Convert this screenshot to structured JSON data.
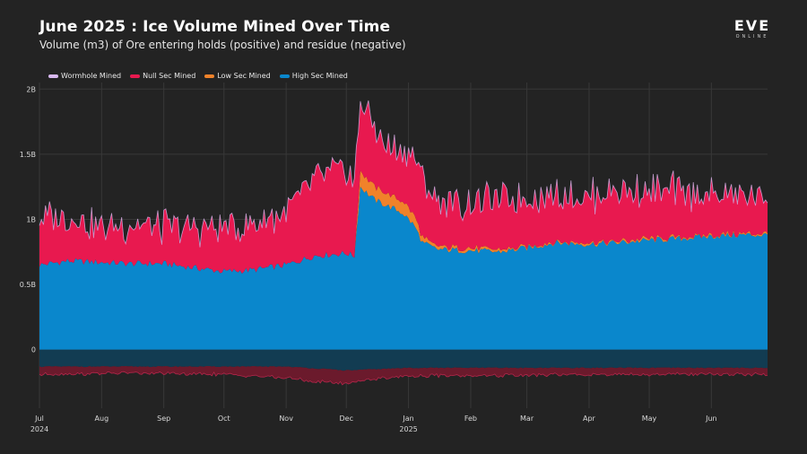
{
  "header": {
    "title": "June 2025 : Ice Volume Mined Over Time",
    "subtitle": "Volume (m3) of Ore entering holds (positive) and residue (negative)"
  },
  "logo": {
    "main": "EVE",
    "sub": "ONLINE"
  },
  "colors": {
    "background": "#232323",
    "wormhole": "#d8b8f0",
    "nullsec": "#e8194f",
    "lowsec": "#f0822a",
    "highsec": "#0a87cc",
    "residue_highsec": "#123c52",
    "residue_nullsec": "#6b1a2c",
    "grid": "#383838"
  },
  "chart_data": {
    "type": "area",
    "stacked": true,
    "x_range": [
      "2024-07-01",
      "2025-06-29"
    ],
    "yticks": [
      {
        "value": 0,
        "label": "0"
      },
      {
        "value": 0.5,
        "label": "0.5B"
      },
      {
        "value": 1,
        "label": "1B"
      },
      {
        "value": 1.5,
        "label": "1.5B"
      },
      {
        "value": 2,
        "label": "2B"
      }
    ],
    "ylim": [
      -0.45,
      2.05
    ],
    "xticks": [
      {
        "date": "2024-07-01",
        "label": "Jul",
        "sub": "2024"
      },
      {
        "date": "2024-08-01",
        "label": "Aug",
        "sub": ""
      },
      {
        "date": "2024-09-01",
        "label": "Sep",
        "sub": ""
      },
      {
        "date": "2024-10-01",
        "label": "Oct",
        "sub": ""
      },
      {
        "date": "2024-11-01",
        "label": "Nov",
        "sub": ""
      },
      {
        "date": "2024-12-01",
        "label": "Dec",
        "sub": ""
      },
      {
        "date": "2025-01-01",
        "label": "Jan",
        "sub": "2025"
      },
      {
        "date": "2025-02-01",
        "label": "Feb",
        "sub": ""
      },
      {
        "date": "2025-03-01",
        "label": "Mar",
        "sub": ""
      },
      {
        "date": "2025-04-01",
        "label": "Apr",
        "sub": ""
      },
      {
        "date": "2025-05-01",
        "label": "May",
        "sub": ""
      },
      {
        "date": "2025-06-01",
        "label": "Jun",
        "sub": ""
      }
    ],
    "legend": [
      "Wormhole Mined",
      "Null Sec Mined",
      "Low Sec Mined",
      "High Sec Mined"
    ],
    "grid": true,
    "series": [
      {
        "name": "High Sec Mined",
        "points": [
          [
            "2024-07-01",
            0.65
          ],
          [
            "2024-07-15",
            0.68
          ],
          [
            "2024-08-01",
            0.67
          ],
          [
            "2024-08-15",
            0.66
          ],
          [
            "2024-09-01",
            0.66
          ],
          [
            "2024-09-15",
            0.63
          ],
          [
            "2024-10-01",
            0.6
          ],
          [
            "2024-10-15",
            0.61
          ],
          [
            "2024-11-01",
            0.65
          ],
          [
            "2024-11-15",
            0.72
          ],
          [
            "2024-12-01",
            0.74
          ],
          [
            "2024-12-05",
            0.72
          ],
          [
            "2024-12-08",
            1.25
          ],
          [
            "2024-12-15",
            1.15
          ],
          [
            "2024-12-22",
            1.1
          ],
          [
            "2024-12-29",
            1.05
          ],
          [
            "2025-01-04",
            0.95
          ],
          [
            "2025-01-08",
            0.82
          ],
          [
            "2025-01-15",
            0.77
          ],
          [
            "2025-02-01",
            0.76
          ],
          [
            "2025-02-15",
            0.75
          ],
          [
            "2025-03-01",
            0.78
          ],
          [
            "2025-03-15",
            0.82
          ],
          [
            "2025-04-01",
            0.81
          ],
          [
            "2025-04-15",
            0.82
          ],
          [
            "2025-05-01",
            0.84
          ],
          [
            "2025-05-15",
            0.85
          ],
          [
            "2025-06-01",
            0.87
          ],
          [
            "2025-06-15",
            0.88
          ],
          [
            "2025-06-29",
            0.88
          ]
        ]
      },
      {
        "name": "Low Sec Mined",
        "points": [
          [
            "2024-07-01",
            0.0
          ],
          [
            "2024-12-05",
            0.0
          ],
          [
            "2024-12-08",
            0.12
          ],
          [
            "2024-12-15",
            0.1
          ],
          [
            "2024-12-22",
            0.09
          ],
          [
            "2024-12-29",
            0.09
          ],
          [
            "2025-01-04",
            0.08
          ],
          [
            "2025-01-08",
            0.04
          ],
          [
            "2025-01-15",
            0.02
          ],
          [
            "2025-02-01",
            0.02
          ],
          [
            "2025-03-01",
            0.01
          ],
          [
            "2025-06-29",
            0.01
          ]
        ]
      },
      {
        "name": "Null Sec Mined",
        "points": [
          [
            "2024-07-01",
            0.35
          ],
          [
            "2024-07-15",
            0.34
          ],
          [
            "2024-08-01",
            0.27
          ],
          [
            "2024-08-15",
            0.3
          ],
          [
            "2024-09-01",
            0.28
          ],
          [
            "2024-09-15",
            0.31
          ],
          [
            "2024-10-01",
            0.34
          ],
          [
            "2024-10-15",
            0.35
          ],
          [
            "2024-11-01",
            0.4
          ],
          [
            "2024-11-15",
            0.6
          ],
          [
            "2024-12-01",
            0.65
          ],
          [
            "2024-12-05",
            0.55
          ],
          [
            "2024-12-08",
            0.55
          ],
          [
            "2024-12-15",
            0.45
          ],
          [
            "2024-12-22",
            0.35
          ],
          [
            "2024-12-29",
            0.4
          ],
          [
            "2025-01-04",
            0.45
          ],
          [
            "2025-01-08",
            0.45
          ],
          [
            "2025-01-15",
            0.35
          ],
          [
            "2025-02-01",
            0.35
          ],
          [
            "2025-02-15",
            0.38
          ],
          [
            "2025-03-01",
            0.37
          ],
          [
            "2025-03-15",
            0.38
          ],
          [
            "2025-04-01",
            0.36
          ],
          [
            "2025-04-15",
            0.4
          ],
          [
            "2025-05-01",
            0.36
          ],
          [
            "2025-05-15",
            0.35
          ],
          [
            "2025-06-01",
            0.3
          ],
          [
            "2025-06-15",
            0.3
          ],
          [
            "2025-06-29",
            0.29
          ]
        ]
      },
      {
        "name": "Wormhole Mined",
        "points": [
          [
            "2024-07-01",
            0.0
          ],
          [
            "2025-06-29",
            0.0
          ]
        ]
      }
    ],
    "residue": [
      {
        "name": "High Sec Mined",
        "points": [
          [
            "2024-07-01",
            -0.13
          ],
          [
            "2024-11-01",
            -0.13
          ],
          [
            "2024-12-01",
            -0.16
          ],
          [
            "2025-01-01",
            -0.14
          ],
          [
            "2025-06-29",
            -0.14
          ]
        ]
      },
      {
        "name": "Null Sec Mined",
        "points": [
          [
            "2024-07-01",
            -0.06
          ],
          [
            "2024-08-15",
            -0.05
          ],
          [
            "2024-10-01",
            -0.06
          ],
          [
            "2024-11-15",
            -0.1
          ],
          [
            "2024-12-01",
            -0.1
          ],
          [
            "2024-12-10",
            -0.08
          ],
          [
            "2025-01-01",
            -0.06
          ],
          [
            "2025-02-15",
            -0.06
          ],
          [
            "2025-04-01",
            -0.05
          ],
          [
            "2025-06-29",
            -0.05
          ]
        ]
      }
    ]
  }
}
